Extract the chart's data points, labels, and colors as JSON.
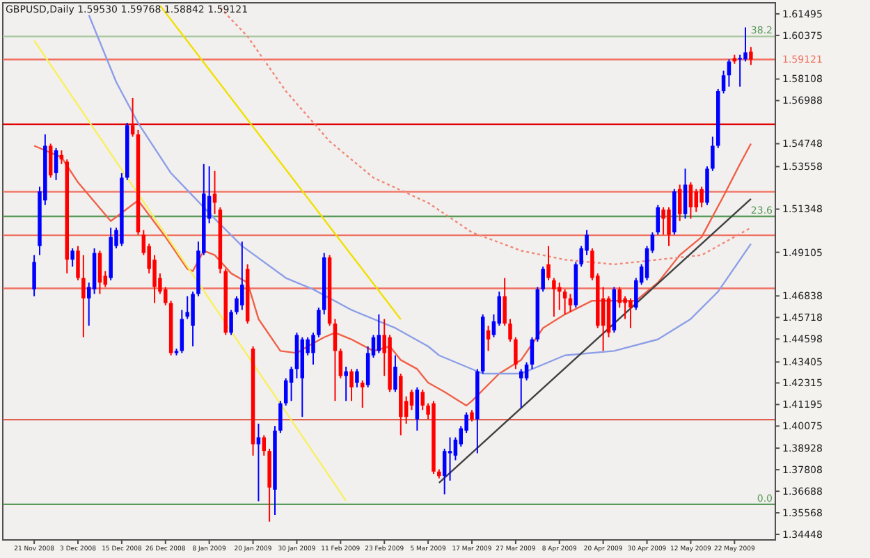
{
  "chart_data": {
    "type": "candlestick",
    "title": "GBPUSD,Daily  1.59530 1.59768 1.58842 1.59121",
    "categories": [
      "21 Nov 2008",
      null,
      null,
      null,
      null,
      null,
      null,
      null,
      "3 Dec 2008",
      null,
      null,
      null,
      null,
      null,
      null,
      null,
      "15 Dec 2008",
      null,
      null,
      null,
      null,
      null,
      null,
      null,
      "26 Dec 2008",
      null,
      null,
      null,
      null,
      null,
      null,
      null,
      "8 Jan 2009",
      null,
      null,
      null,
      null,
      null,
      null,
      null,
      "20 Jan 2009",
      null,
      null,
      null,
      null,
      null,
      null,
      null,
      "30 Jan 2009",
      null,
      null,
      null,
      null,
      null,
      null,
      null,
      "11 Feb 2009",
      null,
      null,
      null,
      null,
      null,
      null,
      null,
      "23 Feb 2009",
      null,
      null,
      null,
      null,
      null,
      null,
      null,
      "5 Mar 2009",
      null,
      null,
      null,
      null,
      null,
      null,
      null,
      "17 Mar 2009",
      null,
      null,
      null,
      null,
      null,
      null,
      null,
      "27 Mar 2009",
      null,
      null,
      null,
      null,
      null,
      null,
      null,
      "8 Apr 2009",
      null,
      null,
      null,
      null,
      null,
      null,
      null,
      "20 Apr 2009",
      null,
      null,
      null,
      null,
      null,
      null,
      null,
      "30 Apr 2009",
      null,
      null,
      null,
      null,
      null,
      null,
      null,
      "12 May 2009",
      null,
      null,
      null,
      null,
      null,
      null,
      null,
      "22 May 2009",
      null,
      null,
      null
    ],
    "ohlc": [
      [
        1.4718,
        1.4896,
        1.4682,
        1.486
      ],
      [
        1.4943,
        1.5251,
        1.4896,
        1.5227
      ],
      [
        1.518,
        1.5523,
        1.5156,
        1.5464
      ],
      [
        1.5464,
        1.5475,
        1.5298,
        1.531
      ],
      [
        1.5322,
        1.5452,
        1.5286,
        1.544
      ],
      [
        1.5416,
        1.544,
        1.5369,
        1.5393
      ],
      [
        1.5381,
        1.5393,
        1.4801,
        1.4872
      ],
      [
        1.4872,
        1.4931,
        1.4836,
        1.4919
      ],
      [
        1.4919,
        1.4943,
        1.4765,
        1.4777
      ],
      [
        1.4777,
        1.4896,
        1.4469,
        1.4671
      ],
      [
        1.4671,
        1.4753,
        1.4529,
        1.473
      ],
      [
        1.4718,
        1.4931,
        1.4694,
        1.4907
      ],
      [
        1.4907,
        1.4919,
        1.4694,
        1.4753
      ],
      [
        1.4789,
        1.4813,
        1.473,
        1.4742
      ],
      [
        1.4777,
        1.5038,
        1.4765,
        1.499
      ],
      [
        1.4943,
        1.5038,
        1.4931,
        1.5026
      ],
      [
        1.4955,
        1.5322,
        1.4943,
        1.5298
      ],
      [
        1.5298,
        1.5582,
        1.5286,
        1.557
      ],
      [
        1.557,
        1.5712,
        1.5511,
        1.5523
      ],
      [
        1.5523,
        1.5546,
        1.5002,
        1.5014
      ],
      [
        1.5002,
        1.5026,
        1.4896,
        1.4907
      ],
      [
        1.4943,
        1.4955,
        1.4801,
        1.4824
      ],
      [
        1.4872,
        1.4896,
        1.4647,
        1.473
      ],
      [
        1.4777,
        1.4801,
        1.4694,
        1.4706
      ],
      [
        1.4718,
        1.473,
        1.4635,
        1.4647
      ],
      [
        1.4647,
        1.4659,
        1.4375,
        1.4387
      ],
      [
        1.4387,
        1.441,
        1.4375,
        1.4398
      ],
      [
        1.4398,
        1.4611,
        1.4387,
        1.4564
      ],
      [
        1.4576,
        1.4682,
        1.4564,
        1.46
      ],
      [
        1.4529,
        1.4706,
        1.4422,
        1.4694
      ],
      [
        1.4694,
        1.4966,
        1.4682,
        1.4919
      ],
      [
        1.4907,
        1.5369,
        1.4896,
        1.5215
      ],
      [
        1.5085,
        1.5357,
        1.5061,
        1.5203
      ],
      [
        1.5215,
        1.5333,
        1.5109,
        1.5168
      ],
      [
        1.5132,
        1.5144,
        1.4801,
        1.4824
      ],
      [
        1.4813,
        1.4824,
        1.4481,
        1.4493
      ],
      [
        1.4493,
        1.4611,
        1.4481,
        1.46
      ],
      [
        1.46,
        1.4682,
        1.4588,
        1.4671
      ],
      [
        1.4635,
        1.4966,
        1.4611,
        1.4742
      ],
      [
        1.4824,
        1.4848,
        1.454,
        1.4552
      ],
      [
        1.441,
        1.4422,
        1.3854,
        1.3913
      ],
      [
        1.3913,
        1.402,
        1.3617,
        1.3949
      ],
      [
        1.3949,
        1.396,
        1.3854,
        1.3878
      ],
      [
        1.3878,
        1.389,
        1.3511,
        1.3688
      ],
      [
        1.3677,
        1.4008,
        1.3546,
        1.3984
      ],
      [
        1.3984,
        1.4138,
        1.3972,
        1.4126
      ],
      [
        1.4126,
        1.4256,
        1.4114,
        1.4245
      ],
      [
        1.4233,
        1.4316,
        1.4138,
        1.4304
      ],
      [
        1.4304,
        1.4493,
        1.4256,
        1.4481
      ],
      [
        1.4256,
        1.4469,
        1.4055,
        1.4458
      ],
      [
        1.4387,
        1.4469,
        1.4375,
        1.4458
      ],
      [
        1.4387,
        1.4493,
        1.4327,
        1.4481
      ],
      [
        1.4481,
        1.4623,
        1.4469,
        1.4611
      ],
      [
        1.4611,
        1.4907,
        1.4588,
        1.4884
      ],
      [
        1.4884,
        1.4896,
        1.4529,
        1.454
      ],
      [
        1.454,
        1.4564,
        1.4138,
        1.4398
      ],
      [
        1.4398,
        1.441,
        1.4256,
        1.4268
      ],
      [
        1.4268,
        1.4316,
        1.4138,
        1.4292
      ],
      [
        1.4292,
        1.4304,
        1.4138,
        1.4209
      ],
      [
        1.4233,
        1.4304,
        1.4209,
        1.4292
      ],
      [
        1.4233,
        1.4245,
        1.4103,
        1.4209
      ],
      [
        1.4221,
        1.4422,
        1.4209,
        1.4387
      ],
      [
        1.4375,
        1.4481,
        1.4363,
        1.4469
      ],
      [
        1.4398,
        1.4588,
        1.4387,
        1.4481
      ],
      [
        1.4481,
        1.4564,
        1.4268,
        1.4387
      ],
      [
        1.4469,
        1.4481,
        1.4185,
        1.4197
      ],
      [
        1.4197,
        1.4375,
        1.4185,
        1.4316
      ],
      [
        1.4268,
        1.428,
        1.396,
        1.4055
      ],
      [
        1.4138,
        1.4162,
        1.402,
        1.4055
      ],
      [
        1.4185,
        1.4197,
        1.4091,
        1.4114
      ],
      [
        1.4043,
        1.4209,
        1.3984,
        1.4197
      ],
      [
        1.4185,
        1.4197,
        1.4091,
        1.4114
      ],
      [
        1.4114,
        1.4126,
        1.4043,
        1.4067
      ],
      [
        1.4126,
        1.4138,
        1.3759,
        1.3771
      ],
      [
        1.3771,
        1.3783,
        1.3736,
        1.3748
      ],
      [
        1.3748,
        1.389,
        1.3653,
        1.3878
      ],
      [
        1.3866,
        1.3949,
        1.3724,
        1.3878
      ],
      [
        1.3854,
        1.3949,
        1.383,
        1.3937
      ],
      [
        1.3913,
        1.4008,
        1.3901,
        1.3996
      ],
      [
        1.3984,
        1.4079,
        1.3972,
        1.4067
      ],
      [
        1.4079,
        1.4091,
        1.4032,
        1.4043
      ],
      [
        1.4043,
        1.4304,
        1.3866,
        1.4292
      ],
      [
        1.4292,
        1.4588,
        1.428,
        1.4576
      ],
      [
        1.4505,
        1.4529,
        1.4398,
        1.4458
      ],
      [
        1.4481,
        1.4588,
        1.4469,
        1.4552
      ],
      [
        1.454,
        1.4706,
        1.4529,
        1.4682
      ],
      [
        1.4682,
        1.4777,
        1.4529,
        1.454
      ],
      [
        1.454,
        1.4564,
        1.4446,
        1.4458
      ],
      [
        1.4458,
        1.4469,
        1.4304,
        1.4327
      ],
      [
        1.4256,
        1.4304,
        1.4103,
        1.4292
      ],
      [
        1.4256,
        1.4339,
        1.4245,
        1.4327
      ],
      [
        1.4327,
        1.4469,
        1.4304,
        1.4458
      ],
      [
        1.4458,
        1.473,
        1.4446,
        1.4718
      ],
      [
        1.4718,
        1.4836,
        1.4706,
        1.4824
      ],
      [
        1.4848,
        1.4943,
        1.4765,
        1.4777
      ],
      [
        1.4765,
        1.4777,
        1.4576,
        1.4718
      ],
      [
        1.473,
        1.4753,
        1.4611,
        1.4706
      ],
      [
        1.4706,
        1.4718,
        1.4588,
        1.4671
      ],
      [
        1.4671,
        1.4694,
        1.46,
        1.4635
      ],
      [
        1.4635,
        1.486,
        1.4623,
        1.4848
      ],
      [
        1.4848,
        1.4943,
        1.4836,
        1.4931
      ],
      [
        1.4919,
        1.5026,
        1.4896,
        1.5002
      ],
      [
        1.4919,
        1.4931,
        1.4765,
        1.4777
      ],
      [
        1.4789,
        1.4801,
        1.4517,
        1.4529
      ],
      [
        1.4671,
        1.473,
        1.4398,
        1.4529
      ],
      [
        1.4671,
        1.4682,
        1.4469,
        1.4493
      ],
      [
        1.4505,
        1.473,
        1.4493,
        1.4718
      ],
      [
        1.4718,
        1.473,
        1.4623,
        1.4647
      ],
      [
        1.4671,
        1.4682,
        1.4564,
        1.4647
      ],
      [
        1.4659,
        1.4671,
        1.4517,
        1.4623
      ],
      [
        1.4623,
        1.4777,
        1.4611,
        1.4765
      ],
      [
        1.4753,
        1.4848,
        1.4742,
        1.4836
      ],
      [
        1.4777,
        1.4943,
        1.4765,
        1.4931
      ],
      [
        1.4919,
        1.5014,
        1.4907,
        1.5002
      ],
      [
        1.5014,
        1.5156,
        1.5002,
        1.5144
      ],
      [
        1.5132,
        1.5144,
        1.5002,
        1.5085
      ],
      [
        1.5132,
        1.5144,
        1.4943,
        1.5002
      ],
      [
        1.5014,
        1.5239,
        1.5002,
        1.5227
      ],
      [
        1.5239,
        1.5262,
        1.5073,
        1.5109
      ],
      [
        1.5109,
        1.5345,
        1.5085,
        1.5262
      ],
      [
        1.5262,
        1.5274,
        1.5085,
        1.5144
      ],
      [
        1.5227,
        1.5239,
        1.512,
        1.5144
      ],
      [
        1.5239,
        1.5251,
        1.5144,
        1.5168
      ],
      [
        1.5168,
        1.5357,
        1.5156,
        1.5345
      ],
      [
        1.5345,
        1.5511,
        1.5333,
        1.5464
      ],
      [
        1.5464,
        1.5759,
        1.5452,
        1.5748
      ],
      [
        1.5748,
        1.5854,
        1.5736,
        1.583
      ],
      [
        1.583,
        1.5913,
        1.5771,
        1.5902
      ],
      [
        1.592,
        1.5937,
        1.589,
        1.5902
      ],
      [
        1.5913,
        1.5937,
        1.5771,
        1.592
      ],
      [
        1.5913,
        1.6079,
        1.5902,
        1.5949
      ],
      [
        1.5953,
        1.5977,
        1.5884,
        1.5912
      ]
    ],
    "colors": [
      "#0000ff",
      "#0000ff",
      "#0000ff",
      "#ff0000",
      "#0000ff",
      "#ff0000",
      "#ff0000",
      "#0000ff",
      "#ff0000",
      "#ff0000",
      "#0000ff",
      "#0000ff",
      "#ff0000",
      "#ff0000",
      "#0000ff",
      "#0000ff",
      "#0000ff",
      "#0000ff",
      "#ff0000",
      "#ff0000",
      "#ff0000",
      "#ff0000",
      "#ff0000",
      "#ff0000",
      "#ff0000",
      "#ff0000",
      "#0000ff",
      "#0000ff",
      "#0000ff",
      "#0000ff",
      "#0000ff",
      "#0000ff",
      "#0000ff",
      "#ff0000",
      "#ff0000",
      "#ff0000",
      "#0000ff",
      "#0000ff",
      "#0000ff",
      "#ff0000",
      "#ff0000",
      "#0000ff",
      "#ff0000",
      "#ff0000",
      "#0000ff",
      "#0000ff",
      "#0000ff",
      "#0000ff",
      "#0000ff",
      "#0000ff",
      "#0000ff",
      "#0000ff",
      "#0000ff",
      "#0000ff",
      "#ff0000",
      "#ff0000",
      "#ff0000",
      "#0000ff",
      "#ff0000",
      "#0000ff",
      "#ff0000",
      "#0000ff",
      "#0000ff",
      "#0000ff",
      "#ff0000",
      "#ff0000",
      "#0000ff",
      "#ff0000",
      "#ff0000",
      "#ff0000",
      "#0000ff",
      "#ff0000",
      "#ff0000",
      "#ff0000",
      "#ff0000",
      "#0000ff",
      "#0000ff",
      "#0000ff",
      "#0000ff",
      "#0000ff",
      "#ff0000",
      "#0000ff",
      "#0000ff",
      "#ff0000",
      "#0000ff",
      "#0000ff",
      "#ff0000",
      "#ff0000",
      "#ff0000",
      "#0000ff",
      "#0000ff",
      "#0000ff",
      "#0000ff",
      "#0000ff",
      "#ff0000",
      "#ff0000",
      "#ff0000",
      "#ff0000",
      "#ff0000",
      "#0000ff",
      "#0000ff",
      "#0000ff",
      "#ff0000",
      "#ff0000",
      "#ff0000",
      "#ff0000",
      "#0000ff",
      "#ff0000",
      "#ff0000",
      "#ff0000",
      "#0000ff",
      "#0000ff",
      "#0000ff",
      "#0000ff",
      "#0000ff",
      "#ff0000",
      "#ff0000",
      "#0000ff",
      "#ff0000",
      "#0000ff",
      "#ff0000",
      "#ff0000",
      "#ff0000",
      "#0000ff",
      "#0000ff",
      "#0000ff",
      "#0000ff",
      "#0000ff",
      "#ff0000",
      "#0000ff",
      "#0000ff",
      "#ff0000"
    ],
    "series": [
      {
        "type": "line",
        "color": "#f06048",
        "values": [
          1.5464,
          null,
          null,
          null,
          null,
          1.5404,
          null,
          null,
          1.5274,
          null,
          null,
          null,
          null,
          null,
          1.5073,
          null,
          null,
          null,
          null,
          1.518,
          null,
          null,
          null,
          null,
          1.499,
          null,
          null,
          null,
          1.4824,
          1.4813,
          null,
          1.4919,
          null,
          1.4896,
          null,
          null,
          1.4801,
          null,
          null,
          1.4753,
          null,
          1.4564,
          null,
          null,
          null,
          1.4398,
          null,
          null,
          1.4387,
          null,
          1.4422,
          null,
          null,
          1.4469,
          null,
          1.4493,
          null,
          null,
          1.4458,
          null,
          null,
          null,
          1.4398,
          null,
          null,
          1.4422,
          null,
          1.4351,
          null,
          null,
          1.4304,
          null,
          1.4233,
          null,
          null,
          1.4185,
          null,
          null,
          null,
          1.4114,
          1.4138,
          null,
          null,
          null,
          null,
          1.428,
          null,
          null,
          null,
          1.4351,
          null,
          null,
          null,
          1.4517,
          null,
          null,
          null,
          1.4588,
          null,
          null,
          null,
          null,
          1.4659,
          null,
          null,
          null,
          1.4659,
          null,
          null,
          null,
          1.4659,
          null,
          null,
          null,
          1.4753,
          null,
          null,
          null,
          1.4896,
          null,
          null,
          null,
          1.499,
          null,
          null,
          null,
          1.5203,
          null,
          null,
          1.5369,
          null,
          1.5475
        ]
      },
      {
        "type": "line",
        "color": "#8c9ee8",
        "values": [
          null,
          null,
          null,
          null,
          null,
          null,
          null,
          null,
          null,
          null,
          1.6143,
          null,
          null,
          null,
          null,
          1.5795,
          null,
          null,
          null,
          1.5582,
          null,
          null,
          null,
          null,
          null,
          1.5322,
          null,
          null,
          null,
          null,
          null,
          null,
          null,
          1.5085,
          null,
          null,
          null,
          null,
          1.4943,
          null,
          null,
          null,
          null,
          null,
          null,
          null,
          1.4777,
          null,
          null,
          null,
          null,
          1.4718,
          null,
          null,
          null,
          null,
          null,
          null,
          1.4611,
          null,
          null,
          null,
          null,
          null,
          null,
          null,
          1.4517,
          null,
          null,
          null,
          null,
          null,
          1.4422,
          null,
          1.4375,
          null,
          null,
          null,
          null,
          null,
          null,
          null,
          1.428,
          null,
          null,
          null,
          null,
          null,
          null,
          1.428,
          null,
          null,
          null,
          null,
          null,
          null,
          null,
          1.4375,
          null,
          null,
          null,
          null,
          null,
          null,
          null,
          null,
          1.4398,
          null,
          null,
          null,
          null,
          null,
          null,
          null,
          1.4458,
          null,
          null,
          null,
          null,
          null,
          1.4564,
          null,
          null,
          null,
          null,
          1.4706,
          null,
          null,
          null,
          null,
          null,
          1.4955
        ]
      },
      {
        "type": "line",
        "color": "#f08878",
        "line_style": "dotted",
        "values": [
          null,
          null,
          null,
          null,
          null,
          null,
          null,
          null,
          null,
          null,
          null,
          null,
          null,
          null,
          null,
          null,
          null,
          null,
          null,
          null,
          null,
          null,
          null,
          null,
          null,
          null,
          null,
          null,
          null,
          null,
          null,
          null,
          null,
          null,
          1.6181,
          null,
          null,
          null,
          null,
          1.6032,
          null,
          null,
          null,
          null,
          null,
          null,
          1.5748,
          null,
          null,
          null,
          null,
          null,
          null,
          null,
          1.5487,
          null,
          null,
          null,
          null,
          null,
          null,
          null,
          1.5298,
          null,
          null,
          null,
          null,
          null,
          null,
          null,
          null,
          null,
          1.5168,
          null,
          null,
          null,
          null,
          null,
          null,
          null,
          1.5014,
          null,
          null,
          null,
          null,
          null,
          null,
          null,
          null,
          1.4919,
          null,
          null,
          null,
          null,
          null,
          null,
          null,
          1.4872,
          null,
          null,
          null,
          null,
          null,
          null,
          null,
          null,
          1.4848,
          null,
          null,
          null,
          null,
          null,
          null,
          null,
          1.4872,
          null,
          null,
          null,
          null,
          null,
          null,
          null,
          1.4896,
          null,
          null,
          null,
          null,
          null,
          null,
          null,
          null,
          1.5038
        ]
      },
      {
        "type": "line",
        "color": "#f0e000",
        "values": [
          null,
          null,
          null,
          null,
          null,
          null,
          null,
          null,
          null,
          null,
          null,
          null,
          null,
          null,
          null,
          null,
          null,
          null,
          null,
          null,
          null,
          null,
          null,
          1.6193,
          null,
          null,
          null,
          null,
          null,
          null,
          null,
          null,
          null,
          null,
          null,
          null,
          null,
          null,
          null,
          null,
          null,
          null,
          null,
          null,
          null,
          null,
          null,
          null,
          null,
          null,
          null,
          null,
          null,
          null,
          null,
          null,
          null,
          null,
          null,
          null,
          null,
          null,
          null,
          null,
          null,
          null,
          null,
          1.4562,
          null,
          null,
          null,
          null,
          null,
          null,
          null,
          null,
          null,
          null,
          null,
          null,
          null,
          null,
          null,
          null,
          null,
          null,
          null,
          null,
          null,
          null,
          null,
          null,
          null,
          null,
          null,
          null,
          null,
          null,
          null,
          null,
          null,
          null,
          null,
          null,
          null,
          null,
          null,
          null,
          null,
          null,
          null,
          null,
          null,
          null,
          null,
          null,
          null,
          null,
          null,
          null,
          null,
          null,
          null,
          null,
          null,
          null,
          null,
          null,
          null,
          null,
          null,
          null
        ]
      },
      {
        "type": "line",
        "color": "#f8f060",
        "values": [
          1.6011,
          null,
          null,
          null,
          null,
          null,
          null,
          null,
          null,
          null,
          null,
          null,
          null,
          null,
          null,
          null,
          null,
          null,
          null,
          null,
          null,
          null,
          null,
          null,
          null,
          null,
          null,
          null,
          null,
          null,
          null,
          null,
          null,
          null,
          null,
          null,
          null,
          null,
          null,
          null,
          null,
          null,
          null,
          null,
          null,
          null,
          null,
          null,
          null,
          null,
          null,
          null,
          null,
          null,
          null,
          null,
          null,
          1.3619,
          null,
          null,
          null,
          null,
          null,
          null,
          null,
          null,
          null,
          null,
          null,
          null,
          null,
          null,
          null,
          null,
          null,
          null,
          null,
          null,
          null,
          null,
          null,
          null,
          null,
          null,
          null,
          null,
          null,
          null,
          null,
          null,
          null,
          null,
          null,
          null,
          null,
          null,
          null,
          null,
          null,
          null,
          null,
          null,
          null,
          null,
          null,
          null,
          null,
          null,
          null,
          null,
          null,
          null,
          null,
          null,
          null,
          null,
          null,
          null,
          null,
          null,
          null,
          null,
          null,
          null,
          null,
          null,
          null,
          null,
          null,
          null,
          null,
          null
        ]
      },
      {
        "type": "line",
        "color": "#404040",
        "values": [
          null,
          null,
          null,
          null,
          null,
          null,
          null,
          null,
          null,
          null,
          null,
          null,
          null,
          null,
          null,
          null,
          null,
          null,
          null,
          null,
          null,
          null,
          null,
          null,
          null,
          null,
          null,
          null,
          null,
          null,
          null,
          null,
          null,
          null,
          null,
          null,
          null,
          null,
          null,
          null,
          null,
          null,
          null,
          null,
          null,
          null,
          null,
          null,
          null,
          null,
          null,
          null,
          null,
          null,
          null,
          null,
          null,
          null,
          null,
          null,
          null,
          null,
          null,
          null,
          null,
          null,
          null,
          null,
          null,
          null,
          null,
          null,
          null,
          null,
          1.3713,
          null,
          null,
          null,
          null,
          null,
          null,
          null,
          null,
          null,
          null,
          null,
          null,
          null,
          null,
          null,
          null,
          null,
          null,
          null,
          null,
          null,
          null,
          null,
          null,
          null,
          null,
          null,
          null,
          null,
          null,
          null,
          null,
          null,
          null,
          null,
          null,
          null,
          null,
          null,
          null,
          null,
          null,
          null,
          null,
          null,
          null,
          null,
          null,
          null,
          null,
          null,
          null,
          null,
          null,
          null,
          null,
          1.5188
        ]
      }
    ],
    "ylim": [
      1.3416,
      1.6207
    ],
    "yticks": [
      1.34448,
      1.35568,
      1.36688,
      1.37808,
      1.38928,
      1.40075,
      1.41195,
      1.42315,
      1.43405,
      1.44598,
      1.45718,
      1.46838,
      1.49105,
      1.51348,
      1.53558,
      1.54748,
      1.56988,
      1.58108,
      1.60375,
      1.61495
    ],
    "ref_lines": [
      {
        "axis": "y",
        "value": 1.6032,
        "color": "#a8c8a0"
      },
      {
        "axis": "y",
        "value": 1.59121,
        "label": "1.59121",
        "color": "#f07060"
      },
      {
        "axis": "y",
        "value": 1.5575,
        "color": "#e00000"
      },
      {
        "axis": "y",
        "value": 1.5225,
        "color": "#f07060"
      },
      {
        "axis": "y",
        "value": 1.5097,
        "color": "#5a9a5a"
      },
      {
        "axis": "y",
        "value": 1.4999,
        "color": "#f07060"
      },
      {
        "axis": "y",
        "value": 1.4723,
        "color": "#f07060"
      },
      {
        "axis": "y",
        "value": 1.4041,
        "color": "#e06050"
      },
      {
        "axis": "y",
        "value": 1.3601,
        "color": "#5a9a5a"
      }
    ],
    "annotations": [
      {
        "text": "38.2",
        "y": 1.6032
      },
      {
        "text": "23.6",
        "y": 1.5097
      },
      {
        "text": "0.0",
        "y": 1.3601
      }
    ]
  }
}
